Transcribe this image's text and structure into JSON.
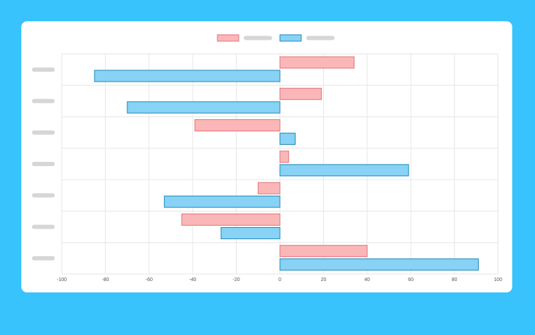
{
  "colors": {
    "background": "#38c3fd",
    "card": "#ffffff",
    "grid": "#e6e6e6",
    "placeholder": "#d6d6d6"
  },
  "chart_data": {
    "type": "bar",
    "orientation": "horizontal",
    "categories": [
      "",
      "",
      "",
      "",
      "",
      "",
      ""
    ],
    "xlim": [
      -100,
      100
    ],
    "x_ticks": [
      "-100",
      "-80",
      "-60",
      "-40",
      "-20",
      "0",
      "20",
      "40",
      "60",
      "80",
      "100"
    ],
    "grid": true,
    "legend_position": "top-center",
    "series": [
      {
        "values": [
          34,
          19,
          -39,
          4,
          -10,
          -45,
          40
        ],
        "fill": "#fbb7b7",
        "stroke": "#e0717b"
      },
      {
        "values": [
          -85,
          -70,
          7,
          59,
          -53,
          -27,
          91
        ],
        "fill": "#87d2f5",
        "stroke": "#1d8ab8"
      }
    ]
  }
}
